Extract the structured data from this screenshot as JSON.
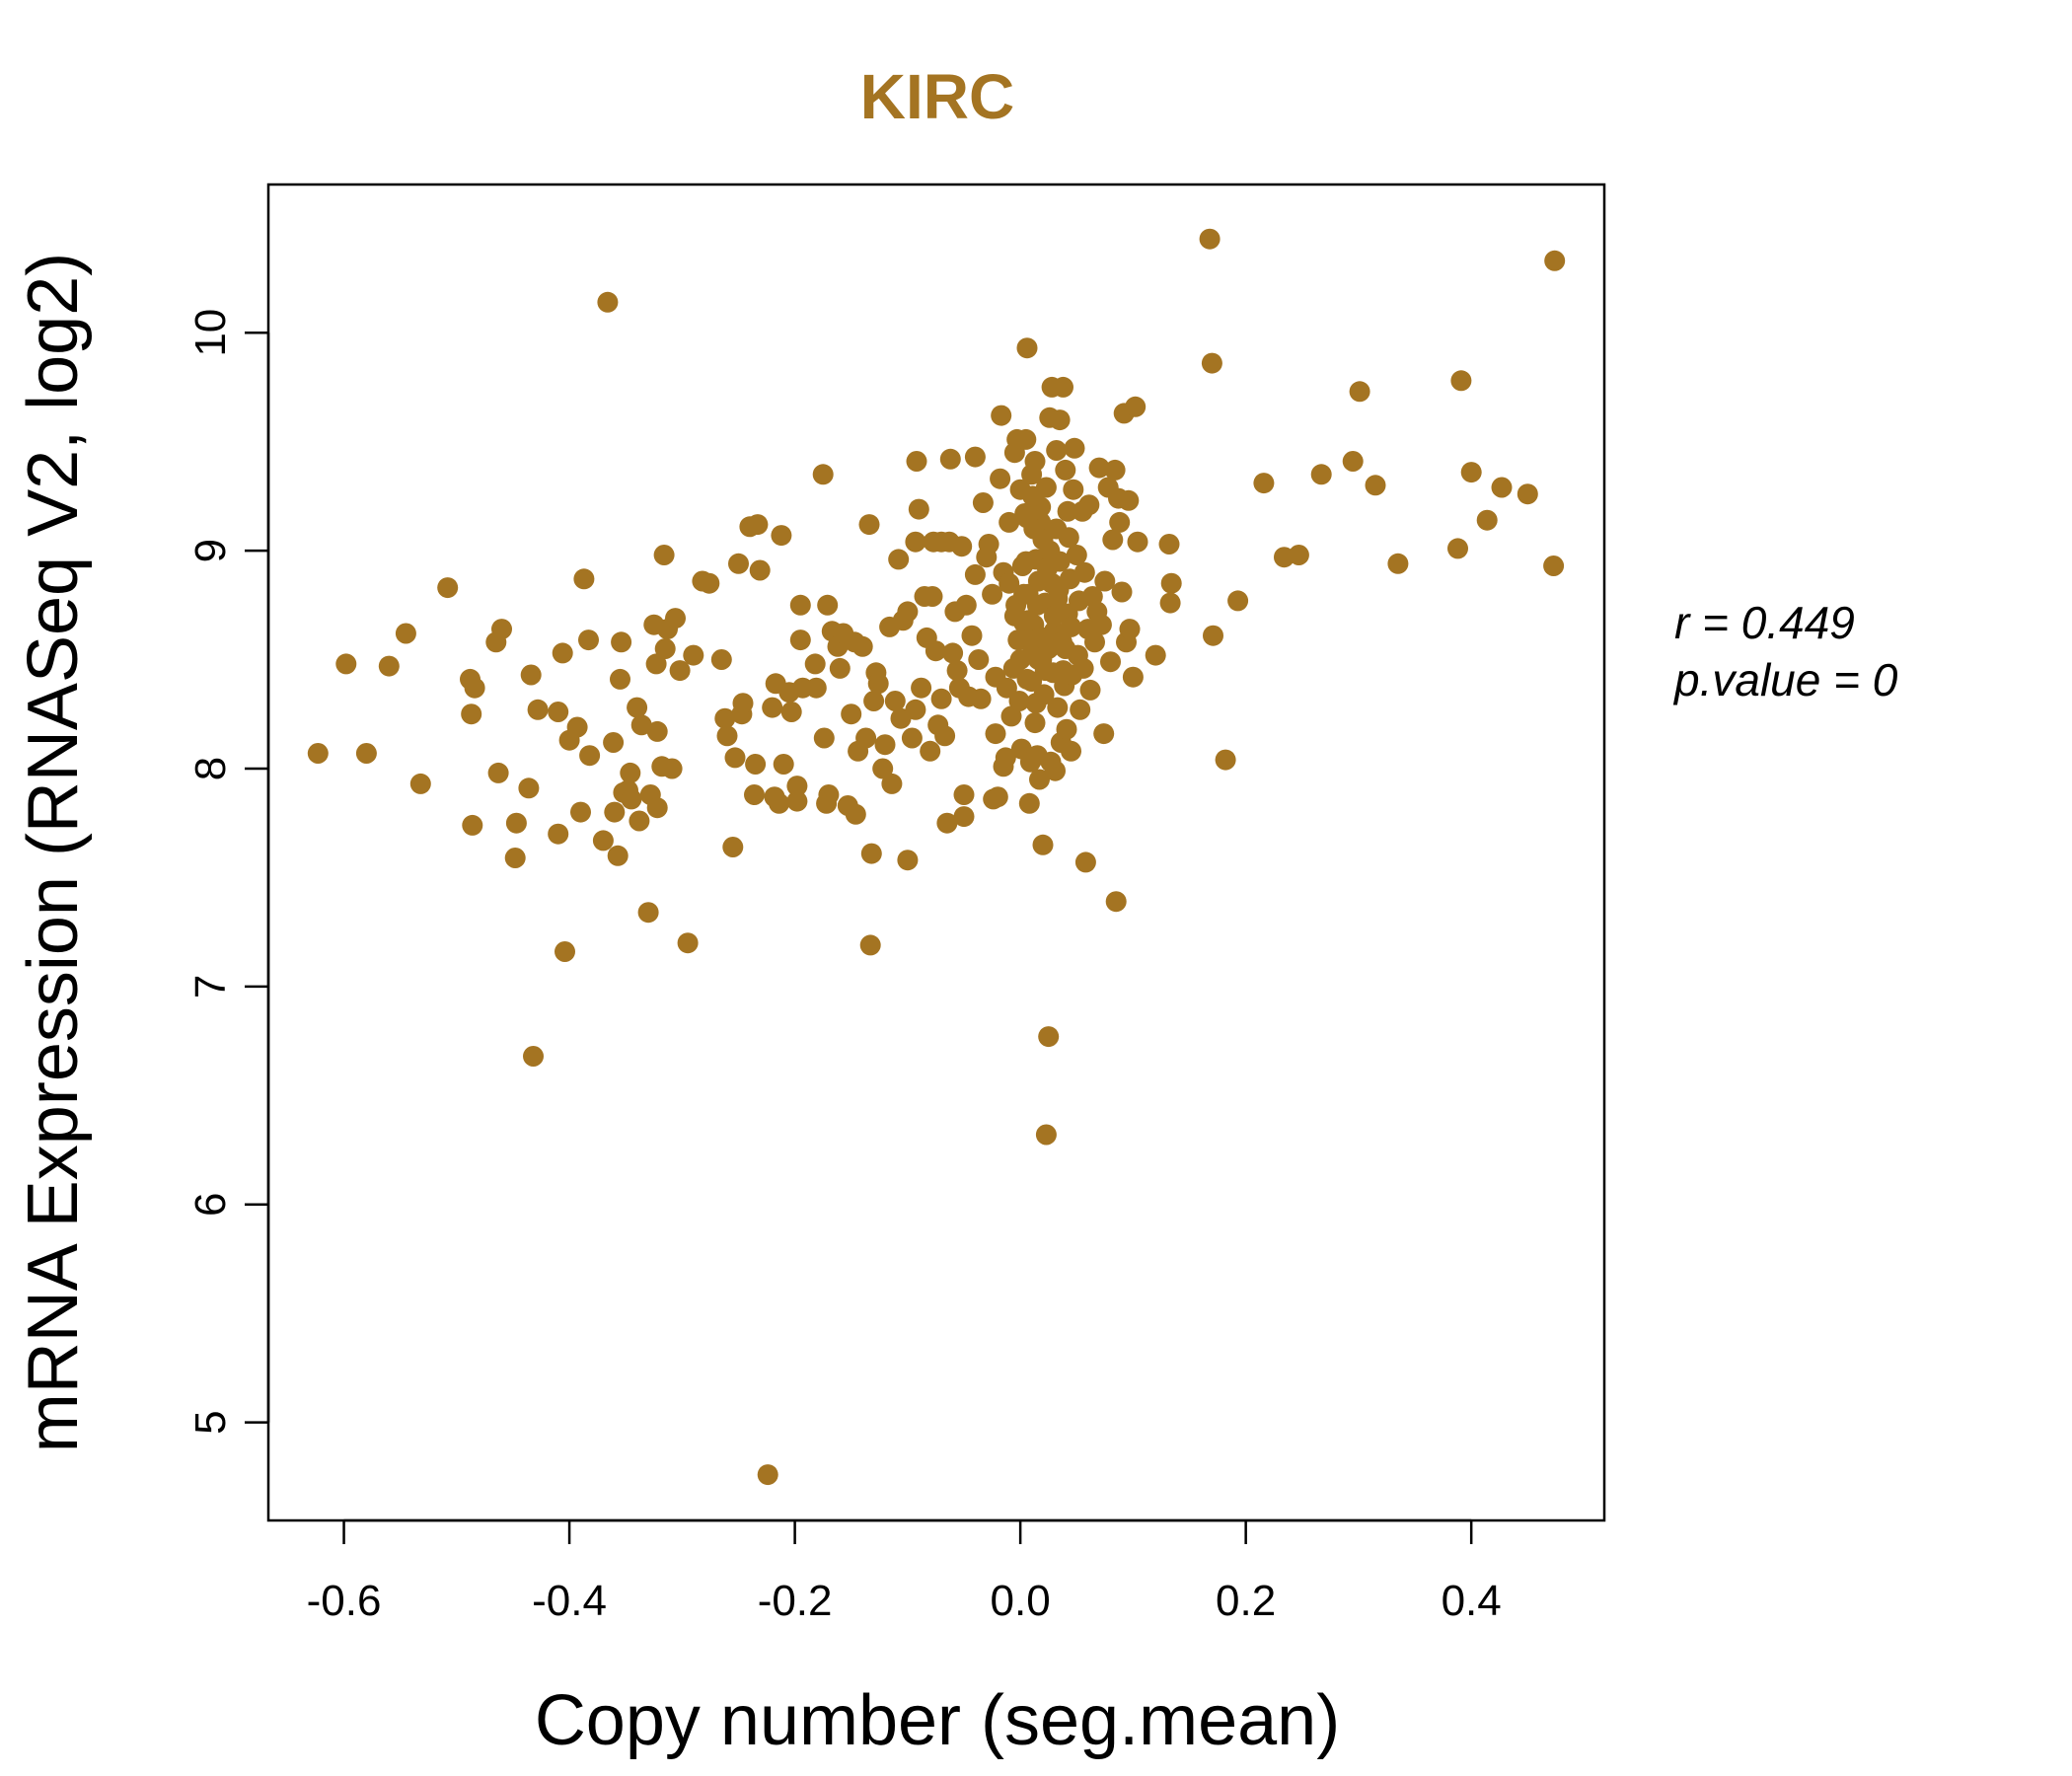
{
  "chart_data": {
    "type": "scatter",
    "title": "KIRC",
    "xlabel": "Copy number (seg.mean)",
    "ylabel": "mRNA Expression (RNASeq V2, log2)",
    "xlim": [
      -0.667,
      0.518
    ],
    "ylim": [
      4.55,
      10.68
    ],
    "xticks": [
      -0.6,
      -0.4,
      -0.2,
      0.0,
      0.2,
      0.4
    ],
    "xtick_labels": [
      "-0.6",
      "-0.4",
      "-0.2",
      "0.0",
      "0.2",
      "0.4"
    ],
    "yticks": [
      5,
      6,
      7,
      8,
      9,
      10
    ],
    "ytick_labels": [
      "5",
      "6",
      "7",
      "8",
      "9",
      "10"
    ],
    "grid": false,
    "point_color": "#A47422",
    "annotations": {
      "r_text": "r = 0.449",
      "p_text": "p.value = 0"
    },
    "points": [
      [
        -0.623,
        8.07
      ],
      [
        -0.598,
        8.48
      ],
      [
        -0.58,
        8.07
      ],
      [
        -0.56,
        8.47
      ],
      [
        -0.545,
        8.62
      ],
      [
        -0.532,
        7.93
      ],
      [
        -0.508,
        8.83
      ],
      [
        -0.488,
        8.41
      ],
      [
        -0.486,
        7.74
      ],
      [
        -0.484,
        8.37
      ],
      [
        -0.487,
        8.25
      ],
      [
        -0.465,
        8.58
      ],
      [
        -0.46,
        8.64
      ],
      [
        -0.463,
        7.98
      ],
      [
        -0.448,
        7.59
      ],
      [
        -0.447,
        7.75
      ],
      [
        -0.436,
        7.91
      ],
      [
        -0.434,
        8.43
      ],
      [
        -0.432,
        6.68
      ],
      [
        -0.428,
        8.27
      ],
      [
        -0.41,
        8.26
      ],
      [
        -0.41,
        7.7
      ],
      [
        -0.406,
        8.53
      ],
      [
        -0.404,
        7.16
      ],
      [
        -0.4,
        8.13
      ],
      [
        -0.393,
        8.19
      ],
      [
        -0.39,
        7.8
      ],
      [
        -0.387,
        8.87
      ],
      [
        -0.383,
        8.59
      ],
      [
        -0.382,
        8.06
      ],
      [
        -0.37,
        7.67
      ],
      [
        -0.366,
        10.14
      ],
      [
        -0.361,
        8.12
      ],
      [
        -0.36,
        7.8
      ],
      [
        -0.357,
        7.6
      ],
      [
        -0.355,
        8.41
      ],
      [
        -0.354,
        8.58
      ],
      [
        -0.352,
        7.89
      ],
      [
        -0.348,
        7.9
      ],
      [
        -0.346,
        7.98
      ],
      [
        -0.345,
        7.86
      ],
      [
        -0.34,
        8.28
      ],
      [
        -0.338,
        7.76
      ],
      [
        -0.336,
        8.2
      ],
      [
        -0.33,
        7.34
      ],
      [
        -0.328,
        7.88
      ],
      [
        -0.325,
        8.66
      ],
      [
        -0.323,
        8.48
      ],
      [
        -0.322,
        7.82
      ],
      [
        -0.322,
        8.17
      ],
      [
        -0.318,
        8.01
      ],
      [
        -0.316,
        8.98
      ],
      [
        -0.315,
        8.55
      ],
      [
        -0.313,
        8.64
      ],
      [
        -0.309,
        8.0
      ],
      [
        -0.306,
        8.69
      ],
      [
        -0.302,
        8.45
      ],
      [
        -0.295,
        7.2
      ],
      [
        -0.29,
        8.52
      ],
      [
        -0.282,
        8.86
      ],
      [
        -0.276,
        8.85
      ],
      [
        -0.265,
        8.5
      ],
      [
        -0.262,
        8.23
      ],
      [
        -0.26,
        8.15
      ],
      [
        -0.255,
        7.64
      ],
      [
        -0.253,
        8.05
      ],
      [
        -0.25,
        8.94
      ],
      [
        -0.247,
        8.25
      ],
      [
        -0.246,
        8.3
      ],
      [
        -0.24,
        9.11
      ],
      [
        -0.236,
        7.88
      ],
      [
        -0.235,
        8.02
      ],
      [
        -0.233,
        9.12
      ],
      [
        -0.231,
        8.91
      ],
      [
        -0.224,
        4.76
      ],
      [
        -0.22,
        8.28
      ],
      [
        -0.218,
        7.87
      ],
      [
        -0.217,
        8.39
      ],
      [
        -0.214,
        7.84
      ],
      [
        -0.212,
        9.07
      ],
      [
        -0.21,
        8.02
      ],
      [
        -0.205,
        8.35
      ],
      [
        -0.203,
        8.26
      ],
      [
        -0.198,
        7.85
      ],
      [
        -0.198,
        7.92
      ],
      [
        -0.195,
        8.59
      ],
      [
        -0.195,
        8.75
      ],
      [
        -0.193,
        8.37
      ],
      [
        -0.182,
        8.48
      ],
      [
        -0.181,
        8.37
      ],
      [
        -0.175,
        9.35
      ],
      [
        -0.174,
        8.14
      ],
      [
        -0.172,
        7.84
      ],
      [
        -0.171,
        8.75
      ],
      [
        -0.17,
        7.88
      ],
      [
        -0.167,
        8.63
      ],
      [
        -0.162,
        8.56
      ],
      [
        -0.16,
        8.46
      ],
      [
        -0.157,
        8.62
      ],
      [
        -0.153,
        7.83
      ],
      [
        -0.15,
        8.25
      ],
      [
        -0.147,
        8.58
      ],
      [
        -0.146,
        7.79
      ],
      [
        -0.144,
        8.08
      ],
      [
        -0.14,
        8.56
      ],
      [
        -0.137,
        8.14
      ],
      [
        -0.134,
        9.12
      ],
      [
        -0.133,
        7.19
      ],
      [
        -0.132,
        7.61
      ],
      [
        -0.13,
        8.31
      ],
      [
        -0.128,
        8.44
      ],
      [
        -0.126,
        8.39
      ],
      [
        -0.122,
        8.0
      ],
      [
        -0.12,
        8.11
      ],
      [
        -0.116,
        8.65
      ],
      [
        -0.114,
        7.93
      ],
      [
        -0.111,
        8.31
      ],
      [
        -0.108,
        8.96
      ],
      [
        -0.106,
        8.23
      ],
      [
        -0.104,
        8.68
      ],
      [
        -0.1,
        8.72
      ],
      [
        -0.1,
        7.58
      ],
      [
        -0.096,
        8.14
      ],
      [
        -0.093,
        8.27
      ],
      [
        -0.093,
        9.04
      ],
      [
        -0.092,
        9.41
      ],
      [
        -0.09,
        9.19
      ],
      [
        -0.088,
        8.37
      ],
      [
        -0.085,
        8.79
      ],
      [
        -0.083,
        8.6
      ],
      [
        -0.08,
        8.08
      ],
      [
        -0.078,
        8.79
      ],
      [
        -0.077,
        9.04
      ],
      [
        -0.075,
        8.54
      ],
      [
        -0.073,
        8.2
      ],
      [
        -0.07,
        8.32
      ],
      [
        -0.07,
        9.04
      ],
      [
        -0.067,
        8.15
      ],
      [
        -0.065,
        7.75
      ],
      [
        -0.063,
        9.04
      ],
      [
        -0.062,
        9.42
      ],
      [
        -0.06,
        8.53
      ],
      [
        -0.058,
        8.72
      ],
      [
        -0.056,
        8.45
      ],
      [
        -0.054,
        8.37
      ],
      [
        -0.052,
        9.02
      ],
      [
        -0.05,
        7.78
      ],
      [
        -0.05,
        7.88
      ],
      [
        -0.048,
        8.75
      ],
      [
        -0.046,
        8.33
      ],
      [
        -0.043,
        8.61
      ],
      [
        -0.04,
        9.43
      ],
      [
        -0.04,
        8.89
      ],
      [
        -0.037,
        8.5
      ],
      [
        -0.035,
        8.32
      ],
      [
        -0.033,
        9.22
      ],
      [
        -0.03,
        8.97
      ],
      [
        -0.028,
        9.03
      ],
      [
        -0.025,
        8.8
      ],
      [
        -0.024,
        7.86
      ],
      [
        -0.022,
        8.16
      ],
      [
        -0.022,
        8.42
      ],
      [
        -0.02,
        7.87
      ],
      [
        -0.018,
        9.33
      ],
      [
        -0.017,
        9.62
      ],
      [
        -0.015,
        8.01
      ],
      [
        -0.015,
        8.9
      ],
      [
        -0.013,
        8.05
      ],
      [
        -0.012,
        8.37
      ],
      [
        -0.01,
        9.13
      ],
      [
        -0.008,
        8.24
      ],
      [
        -0.006,
        8.46
      ],
      [
        -0.005,
        9.45
      ],
      [
        -0.004,
        8.75
      ],
      [
        -0.003,
        9.51
      ],
      [
        -0.002,
        8.59
      ],
      [
        -0.001,
        8.31
      ],
      [
        0.0,
        9.28
      ],
      [
        0.001,
        8.09
      ],
      [
        0.002,
        8.93
      ],
      [
        0.003,
        8.67
      ],
      [
        0.004,
        9.17
      ],
      [
        0.005,
        9.51
      ],
      [
        0.006,
        9.93
      ],
      [
        0.006,
        8.41
      ],
      [
        0.007,
        8.8
      ],
      [
        0.008,
        7.84
      ],
      [
        0.009,
        8.03
      ],
      [
        0.01,
        9.35
      ],
      [
        0.011,
        8.54
      ],
      [
        0.012,
        8.66
      ],
      [
        0.013,
        9.41
      ],
      [
        0.013,
        8.21
      ],
      [
        0.014,
        8.96
      ],
      [
        0.015,
        8.06
      ],
      [
        0.016,
        8.86
      ],
      [
        0.017,
        7.95
      ],
      [
        0.018,
        9.13
      ],
      [
        0.019,
        8.5
      ],
      [
        0.02,
        7.65
      ],
      [
        0.021,
        8.34
      ],
      [
        0.022,
        8.76
      ],
      [
        0.023,
        9.29
      ],
      [
        0.023,
        6.32
      ],
      [
        0.024,
        8.92
      ],
      [
        0.025,
        6.77
      ],
      [
        0.026,
        9.61
      ],
      [
        0.027,
        8.03
      ],
      [
        0.028,
        9.75
      ],
      [
        0.029,
        8.44
      ],
      [
        0.03,
        8.63
      ],
      [
        0.031,
        7.99
      ],
      [
        0.032,
        9.46
      ],
      [
        0.033,
        8.28
      ],
      [
        0.034,
        8.82
      ],
      [
        0.035,
        9.6
      ],
      [
        0.036,
        8.12
      ],
      [
        0.037,
        8.58
      ],
      [
        0.038,
        9.75
      ],
      [
        0.039,
        8.38
      ],
      [
        0.04,
        9.37
      ],
      [
        0.041,
        8.18
      ],
      [
        0.042,
        8.71
      ],
      [
        0.043,
        9.06
      ],
      [
        0.044,
        8.87
      ],
      [
        0.045,
        8.08
      ],
      [
        0.046,
        8.43
      ],
      [
        0.047,
        9.28
      ],
      [
        0.048,
        9.47
      ],
      [
        0.05,
        8.98
      ],
      [
        0.051,
        8.52
      ],
      [
        0.052,
        8.77
      ],
      [
        0.053,
        8.27
      ],
      [
        0.055,
        9.18
      ],
      [
        0.056,
        8.46
      ],
      [
        0.057,
        8.9
      ],
      [
        0.058,
        7.57
      ],
      [
        0.06,
        8.64
      ],
      [
        0.061,
        9.21
      ],
      [
        0.062,
        8.36
      ],
      [
        0.064,
        8.79
      ],
      [
        0.066,
        8.58
      ],
      [
        0.068,
        8.72
      ],
      [
        0.07,
        9.38
      ],
      [
        0.072,
        8.66
      ],
      [
        0.074,
        8.16
      ],
      [
        0.075,
        8.86
      ],
      [
        0.078,
        9.29
      ],
      [
        0.08,
        8.49
      ],
      [
        0.082,
        9.05
      ],
      [
        0.084,
        9.37
      ],
      [
        0.085,
        7.39
      ],
      [
        0.087,
        9.24
      ],
      [
        0.088,
        9.13
      ],
      [
        0.09,
        8.81
      ],
      [
        0.092,
        9.63
      ],
      [
        0.094,
        8.58
      ],
      [
        0.096,
        9.23
      ],
      [
        0.097,
        8.64
      ],
      [
        0.1,
        8.42
      ],
      [
        0.102,
        9.66
      ],
      [
        0.104,
        9.04
      ],
      [
        0.12,
        8.52
      ],
      [
        0.132,
        9.03
      ],
      [
        0.133,
        8.76
      ],
      [
        0.134,
        8.85
      ],
      [
        0.168,
        10.43
      ],
      [
        0.17,
        9.86
      ],
      [
        0.171,
        8.61
      ],
      [
        0.182,
        8.04
      ],
      [
        0.193,
        8.77
      ],
      [
        0.216,
        9.31
      ],
      [
        0.234,
        8.97
      ],
      [
        0.247,
        8.98
      ],
      [
        0.267,
        9.35
      ],
      [
        0.295,
        9.41
      ],
      [
        0.301,
        9.73
      ],
      [
        0.315,
        9.3
      ],
      [
        0.335,
        8.94
      ],
      [
        0.388,
        9.01
      ],
      [
        0.391,
        9.78
      ],
      [
        0.4,
        9.36
      ],
      [
        0.414,
        9.14
      ],
      [
        0.427,
        9.29
      ],
      [
        0.45,
        9.26
      ],
      [
        0.473,
        8.93
      ],
      [
        0.474,
        10.33
      ],
      [
        0.005,
        8.95
      ],
      [
        0.012,
        9.1
      ],
      [
        0.02,
        9.05
      ],
      [
        0.03,
        8.7
      ],
      [
        0.008,
        8.6
      ],
      [
        0.015,
        8.75
      ],
      [
        0.025,
        8.55
      ],
      [
        0.035,
        8.95
      ],
      [
        -0.005,
        8.7
      ],
      [
        0.0,
        8.5
      ],
      [
        0.018,
        9.2
      ],
      [
        0.028,
        8.85
      ],
      [
        0.01,
        8.4
      ],
      [
        0.022,
        8.45
      ],
      [
        0.04,
        8.55
      ],
      [
        -0.01,
        8.85
      ],
      [
        0.006,
        9.15
      ],
      [
        0.032,
        9.1
      ],
      [
        0.045,
        8.65
      ],
      [
        0.014,
        8.3
      ],
      [
        0.003,
        8.8
      ],
      [
        0.026,
        9.0
      ],
      [
        0.038,
        8.45
      ],
      [
        0.02,
        8.6
      ],
      [
        0.011,
        9.25
      ],
      [
        0.016,
        8.5
      ],
      [
        0.024,
        8.92
      ],
      [
        0.007,
        8.68
      ],
      [
        0.033,
        8.78
      ],
      [
        0.042,
        9.18
      ]
    ]
  }
}
